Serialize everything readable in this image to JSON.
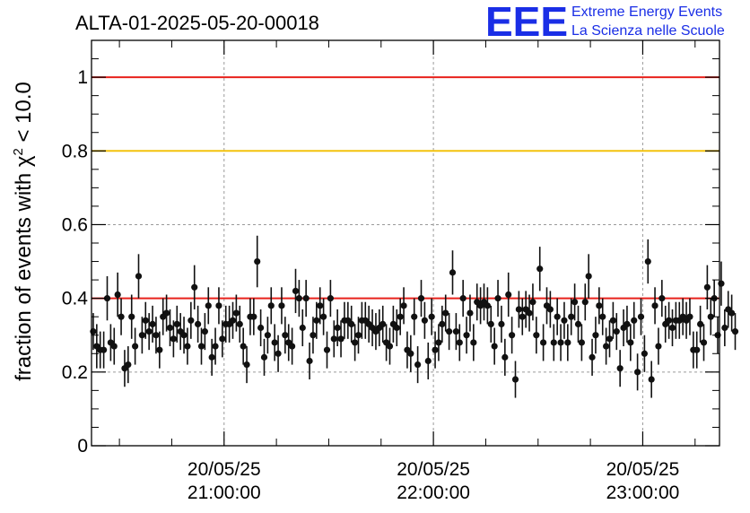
{
  "chart_data": {
    "type": "scatter",
    "title": "ALTA-01-2025-05-20-00018",
    "ylabel": {
      "prefix": "fraction of events with ",
      "symbol": "χ",
      "power": "2",
      "suffix": " < 10.0"
    },
    "ylim": [
      0,
      1.1
    ],
    "xlim": [
      "20:22:00",
      "23:22:00"
    ],
    "yticks": [
      "0",
      "0.2",
      "0.4",
      "0.6",
      "0.8",
      "1"
    ],
    "xticks": [
      {
        "date": "20/05/25",
        "time": "21:00:00"
      },
      {
        "date": "20/05/25",
        "time": "22:00:00"
      },
      {
        "date": "20/05/25",
        "time": "23:00:00"
      }
    ],
    "grid": true,
    "reference_lines": [
      {
        "y": 1.0,
        "color": "#e8221c"
      },
      {
        "y": 0.8,
        "color": "#f4c20d"
      },
      {
        "y": 0.4,
        "color": "#e8221c"
      }
    ],
    "point_color": "#111111",
    "x_step_minutes": 1,
    "y_values": [
      0.31,
      0.27,
      0.26,
      0.26,
      0.4,
      0.28,
      0.27,
      0.41,
      0.35,
      0.21,
      0.22,
      0.35,
      0.27,
      0.46,
      0.3,
      0.34,
      0.31,
      0.33,
      0.3,
      0.26,
      0.35,
      0.36,
      0.32,
      0.29,
      0.33,
      0.31,
      0.3,
      0.27,
      0.34,
      0.43,
      0.33,
      0.27,
      0.31,
      0.38,
      0.24,
      0.27,
      0.38,
      0.29,
      0.33,
      0.33,
      0.34,
      0.36,
      0.33,
      0.27,
      0.22,
      0.35,
      0.35,
      0.5,
      0.32,
      0.24,
      0.3,
      0.38,
      0.28,
      0.25,
      0.38,
      0.3,
      0.28,
      0.27,
      0.42,
      0.4,
      0.32,
      0.4,
      0.23,
      0.3,
      0.34,
      0.38,
      0.35,
      0.26,
      0.4,
      0.29,
      0.32,
      0.29,
      0.34,
      0.34,
      0.33,
      0.28,
      0.3,
      0.34,
      0.34,
      0.33,
      0.32,
      0.31,
      0.32,
      0.33,
      0.28,
      0.27,
      0.33,
      0.32,
      0.35,
      0.38,
      0.26,
      0.25,
      0.35,
      0.22,
      0.4,
      0.34,
      0.23,
      0.35,
      0.26,
      0.28,
      0.33,
      0.36,
      0.31,
      0.47,
      0.31,
      0.28,
      0.4,
      0.3,
      0.36,
      0.28,
      0.39,
      0.38,
      0.39,
      0.38,
      0.33,
      0.27,
      0.4,
      0.33,
      0.24,
      0.41,
      0.3,
      0.18,
      0.37,
      0.35,
      0.37,
      0.36,
      0.39,
      0.3,
      0.48,
      0.28,
      0.38,
      0.37,
      0.28,
      0.35,
      0.28,
      0.34,
      0.28,
      0.35,
      0.39,
      0.33,
      0.28,
      0.39,
      0.46,
      0.24,
      0.3,
      0.38,
      0.35,
      0.27,
      0.29,
      0.34,
      0.31,
      0.21,
      0.32,
      0.33,
      0.28,
      0.34,
      0.2,
      0.35,
      0.25,
      0.5,
      0.18,
      0.38,
      0.27,
      0.4,
      0.33,
      0.34,
      0.32,
      0.34,
      0.34,
      0.35,
      0.34,
      0.35,
      0.26,
      0.26,
      0.33,
      0.28,
      0.43,
      0.35,
      0.4,
      0.3,
      0.44,
      0.32,
      0.37,
      0.36,
      0.31
    ],
    "y_errors": [
      0.05,
      0.06,
      0.05,
      0.05,
      0.06,
      0.05,
      0.05,
      0.06,
      0.05,
      0.05,
      0.05,
      0.06,
      0.05,
      0.06,
      0.05,
      0.05,
      0.05,
      0.05,
      0.05,
      0.05,
      0.05,
      0.05,
      0.05,
      0.05,
      0.05,
      0.05,
      0.05,
      0.05,
      0.05,
      0.06,
      0.05,
      0.05,
      0.05,
      0.05,
      0.05,
      0.05,
      0.05,
      0.05,
      0.05,
      0.05,
      0.05,
      0.05,
      0.05,
      0.05,
      0.05,
      0.05,
      0.05,
      0.07,
      0.05,
      0.05,
      0.05,
      0.05,
      0.05,
      0.05,
      0.05,
      0.05,
      0.05,
      0.05,
      0.06,
      0.05,
      0.05,
      0.05,
      0.05,
      0.05,
      0.05,
      0.05,
      0.05,
      0.05,
      0.05,
      0.05,
      0.05,
      0.05,
      0.05,
      0.05,
      0.05,
      0.05,
      0.05,
      0.05,
      0.05,
      0.05,
      0.05,
      0.05,
      0.05,
      0.05,
      0.05,
      0.05,
      0.05,
      0.05,
      0.05,
      0.05,
      0.05,
      0.05,
      0.05,
      0.05,
      0.05,
      0.05,
      0.05,
      0.05,
      0.05,
      0.05,
      0.05,
      0.05,
      0.05,
      0.06,
      0.05,
      0.05,
      0.05,
      0.05,
      0.05,
      0.05,
      0.05,
      0.05,
      0.05,
      0.05,
      0.05,
      0.05,
      0.05,
      0.05,
      0.05,
      0.06,
      0.05,
      0.05,
      0.05,
      0.05,
      0.05,
      0.05,
      0.05,
      0.05,
      0.06,
      0.05,
      0.05,
      0.05,
      0.05,
      0.05,
      0.05,
      0.05,
      0.05,
      0.05,
      0.05,
      0.05,
      0.05,
      0.05,
      0.06,
      0.05,
      0.05,
      0.05,
      0.05,
      0.05,
      0.05,
      0.05,
      0.05,
      0.05,
      0.05,
      0.05,
      0.05,
      0.05,
      0.05,
      0.05,
      0.05,
      0.06,
      0.05,
      0.05,
      0.05,
      0.05,
      0.05,
      0.05,
      0.05,
      0.05,
      0.05,
      0.05,
      0.05,
      0.05,
      0.05,
      0.05,
      0.05,
      0.05,
      0.06,
      0.05,
      0.05,
      0.05,
      0.06,
      0.05,
      0.05,
      0.05,
      0.05
    ]
  },
  "logo": {
    "mark": "EEE",
    "line1": "Extreme Energy Events",
    "line2": "La Scienza nelle Scuole",
    "color": "#1a2ee6"
  }
}
